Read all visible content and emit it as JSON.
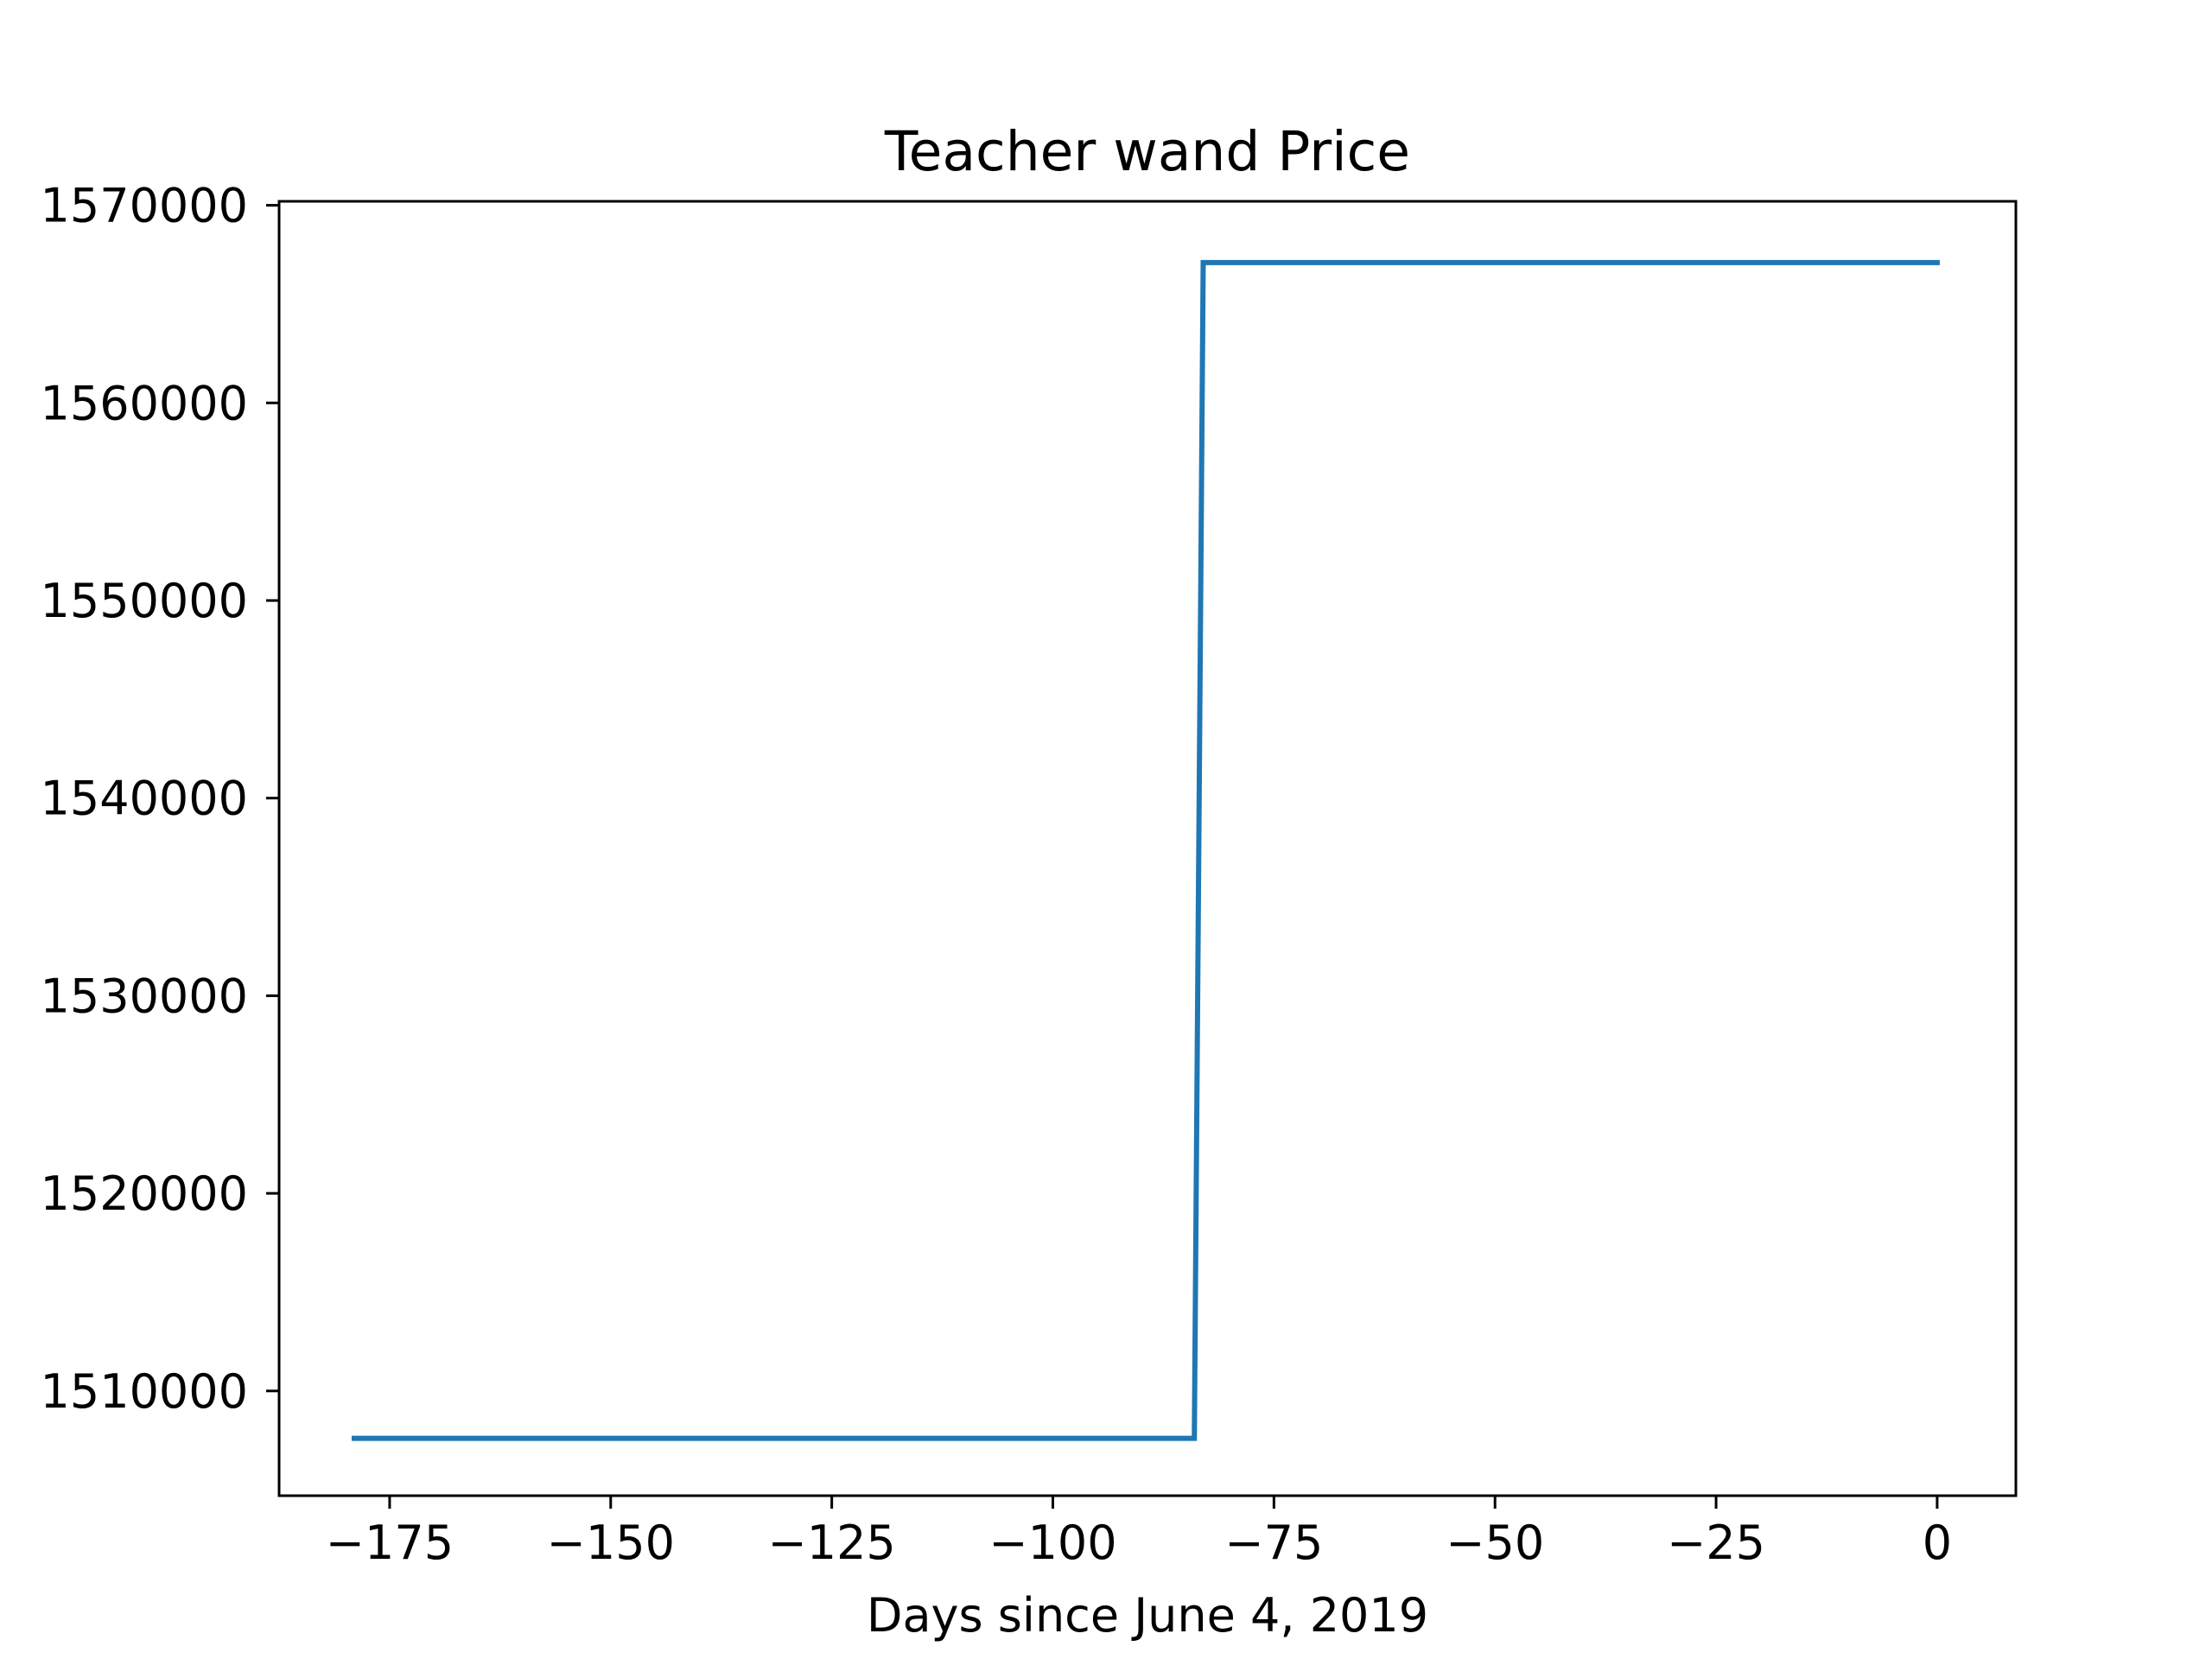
{
  "chart_data": {
    "type": "line",
    "title": "Teacher wand Price",
    "xlabel": "Days since June 4, 2019",
    "ylabel": "",
    "xlim": [
      -187.5,
      8.9
    ],
    "ylim": [
      1504700,
      1570200
    ],
    "x_ticks": [
      -175,
      -150,
      -125,
      -100,
      -75,
      -50,
      -25,
      0
    ],
    "x_tick_labels": [
      "−175",
      "−150",
      "−125",
      "−100",
      "−75",
      "−50",
      "−25",
      "0"
    ],
    "y_ticks": [
      1510000,
      1520000,
      1530000,
      1540000,
      1550000,
      1560000,
      1570000
    ],
    "y_tick_labels": [
      "1510000",
      "1520000",
      "1530000",
      "1540000",
      "1550000",
      "1560000",
      "1570000"
    ],
    "grid": false,
    "legend": "none",
    "series": [
      {
        "color": "#1f77b4",
        "x": [
          -179,
          -84,
          -83,
          0
        ],
        "y": [
          1507600,
          1507600,
          1567100,
          1567100
        ]
      }
    ]
  }
}
